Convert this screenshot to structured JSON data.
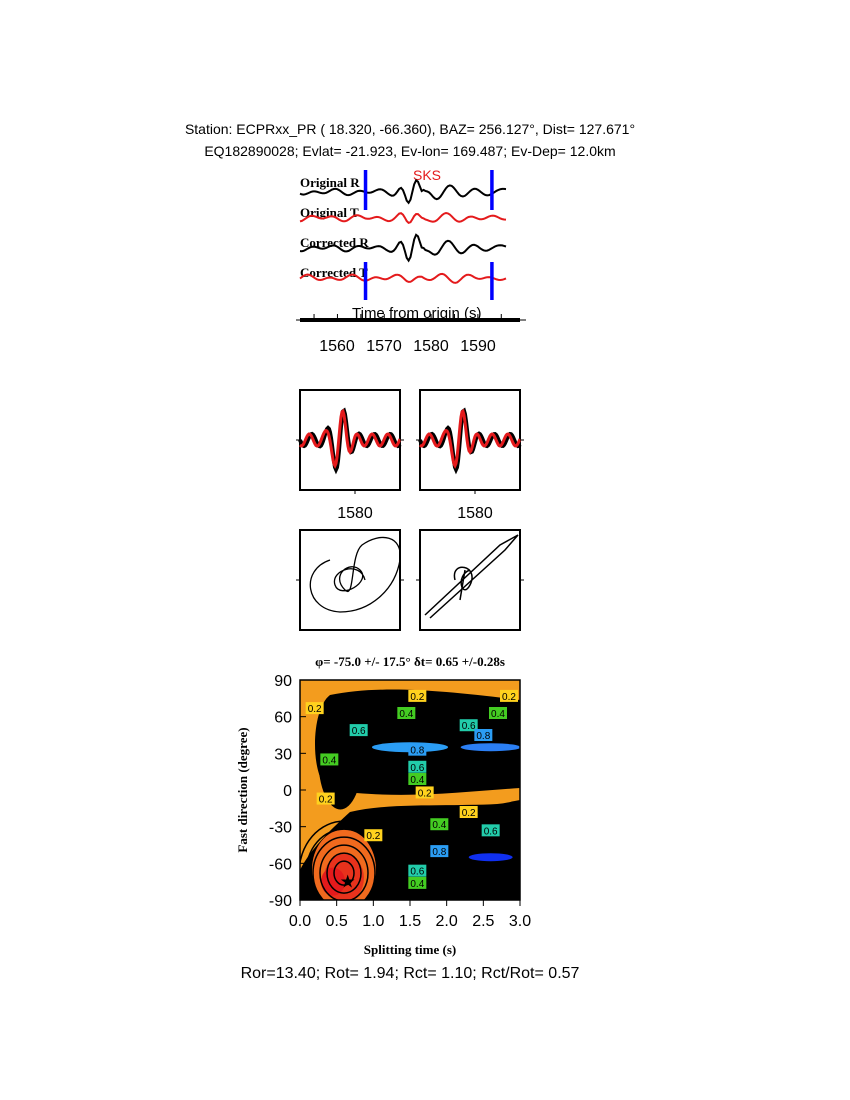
{
  "header": {
    "line1": "Station: ECPRxx_PR (  18.320,  -66.360), BAZ=  256.127°, Dist=  127.671°",
    "line2": "EQ182890028; Evlat= -21.923, Ev-lon= 169.487; Ev-Dep= 12.0km"
  },
  "footer": "Ror=13.40; Rot= 1.94; Rct= 1.10; Rct/Rot= 0.57",
  "colors": {
    "radial": "#000000",
    "transverse": "#e41a1c",
    "window": "#0000ff",
    "phase": "#e41a1c"
  },
  "chart_data": [
    {
      "type": "line",
      "traces": [
        "Original R",
        "Original T",
        "Corrected R",
        "Corrected T"
      ],
      "phase_label": "SKS",
      "phase_time": 1576,
      "window": [
        1566,
        1593
      ],
      "xlabel": "Time from origin (s)",
      "xticks": [
        1560,
        1570,
        1580,
        1590
      ],
      "xlim": [
        1552,
        1599
      ]
    },
    {
      "type": "line",
      "panels": [
        "original",
        "corrected"
      ],
      "xticks": [
        1580
      ]
    },
    {
      "type": "scatter",
      "panels": [
        "particle-motion-original",
        "particle-motion-corrected"
      ]
    },
    {
      "type": "heatmap",
      "title": "φ= -75.0 +/- 17.5° δt= 0.65 +/-0.28s",
      "xlabel": "Splitting time (s)",
      "ylabel": "Fast direction (degree)",
      "xlim": [
        0,
        3
      ],
      "ylim": [
        -90,
        90
      ],
      "xticks": [
        "0.0",
        "0.5",
        "1.0",
        "1.5",
        "2.0",
        "2.5",
        "3.0"
      ],
      "yticks": [
        "90",
        "60",
        "30",
        "0",
        "-30",
        "-60",
        "-90"
      ],
      "best": {
        "dt": 0.65,
        "phi": -75
      },
      "contour_labels": [
        {
          "t": 0.2,
          "dt": 0.2,
          "phi": 67,
          "v": "0.2"
        },
        {
          "t": 1.9,
          "dt": 1.6,
          "phi": 77,
          "v": "0.2"
        },
        {
          "t": 1.9,
          "dt": 1.45,
          "phi": 63,
          "v": "0.4"
        },
        {
          "t": 2.8,
          "dt": 2.85,
          "phi": 77,
          "v": "0.2"
        },
        {
          "t": 2.7,
          "dt": 2.7,
          "phi": 63,
          "v": "0.4"
        },
        {
          "t": 0.8,
          "dt": 0.8,
          "phi": 49,
          "v": "0.6"
        },
        {
          "t": 2.4,
          "dt": 2.3,
          "phi": 53,
          "v": "0.6"
        },
        {
          "t": 2.5,
          "dt": 2.5,
          "phi": 45,
          "v": "0.8"
        },
        {
          "t": 0.4,
          "dt": 0.4,
          "phi": 25,
          "v": "0.4"
        },
        {
          "t": 1.6,
          "dt": 1.6,
          "phi": 33,
          "v": "0.8"
        },
        {
          "t": 1.6,
          "dt": 1.6,
          "phi": 19,
          "v": "0.6"
        },
        {
          "t": 1.6,
          "dt": 1.6,
          "phi": 9,
          "v": "0.4"
        },
        {
          "t": 1.7,
          "dt": 1.7,
          "phi": -2,
          "v": "0.2"
        },
        {
          "t": 0.35,
          "dt": 0.35,
          "phi": -7,
          "v": "0.2"
        },
        {
          "t": 2.3,
          "dt": 2.3,
          "phi": -18,
          "v": "0.2"
        },
        {
          "t": 1.9,
          "dt": 1.9,
          "phi": -28,
          "v": "0.4"
        },
        {
          "t": 2.6,
          "dt": 2.6,
          "phi": -33,
          "v": "0.6"
        },
        {
          "t": 1.0,
          "dt": 1.0,
          "phi": -37,
          "v": "0.2"
        },
        {
          "t": 1.9,
          "dt": 1.9,
          "phi": -50,
          "v": "0.8"
        },
        {
          "t": 1.6,
          "dt": 1.6,
          "phi": -66,
          "v": "0.6"
        },
        {
          "t": 1.6,
          "dt": 1.6,
          "phi": -76,
          "v": "0.4"
        }
      ]
    }
  ]
}
